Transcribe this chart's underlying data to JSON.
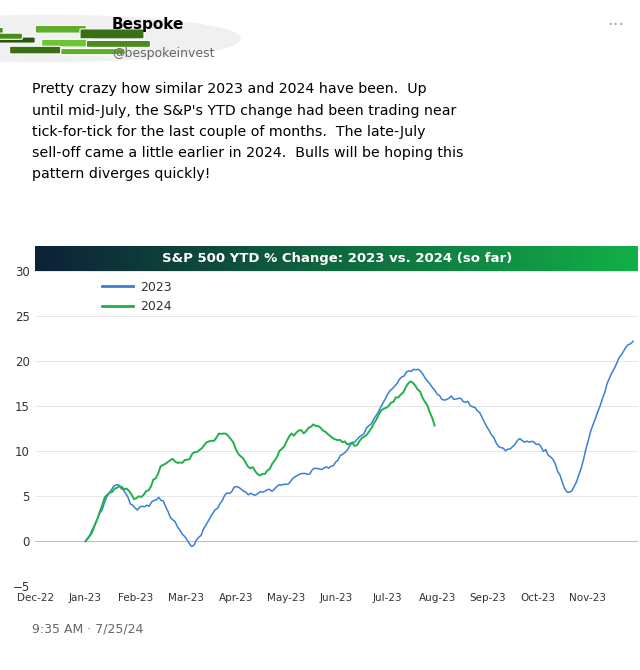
{
  "title": "S&P 500 YTD % Change: 2023 vs. 2024 (so far)",
  "title_color": "#ffffff",
  "title_bg_left": "#0d2137",
  "title_bg_right": "#1db954",
  "line_color_2023": "#3a7fd5",
  "line_color_2024": "#22b04b",
  "ylim": [
    -5,
    30
  ],
  "yticks": [
    -5,
    0,
    5,
    10,
    15,
    20,
    25,
    30
  ],
  "xlabel_ticks": [
    "Dec-22",
    "Jan-23",
    "Feb-23",
    "Mar-23",
    "Apr-23",
    "May-23",
    "Jun-23",
    "Jul-23",
    "Aug-23",
    "Sep-23",
    "Oct-23",
    "Nov-23"
  ],
  "legend_labels": [
    "2023",
    "2024"
  ],
  "bg_color": "#ffffff",
  "plot_bg_color": "#ffffff",
  "grid_color": "#dddddd",
  "tweet_text_line1": "Pretty crazy how similar 2023 and 2024 have been.  Up",
  "tweet_text_line2": "until mid-July, the S&P's YTD change had been trading near",
  "tweet_text_line3": "tick-for-tick for the last couple of months.  The late-July",
  "tweet_text_line4": "sell-off came a little earlier in 2024.  Bulls will be hoping this",
  "tweet_text_line5": "pattern diverges quickly!",
  "tweet_time": "9:35 AM · 7/25/24",
  "bespoke_name": "Bespoke",
  "bespoke_handle": "@bespokeinvest"
}
